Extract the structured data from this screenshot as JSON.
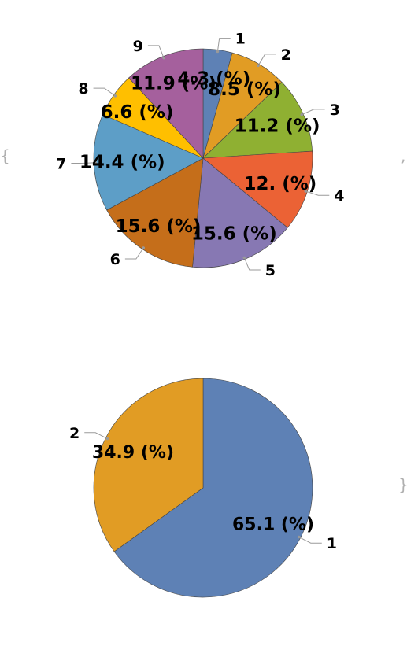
{
  "chart_data": [
    {
      "type": "pie",
      "title": "",
      "start": "top",
      "direction": "clockwise",
      "series": [
        {
          "label": "1",
          "value": 4.3,
          "value_label": "4.3 (%)",
          "color": "#5e81b5"
        },
        {
          "label": "2",
          "value": 8.5,
          "value_label": "8.5 (%)",
          "color": "#e19c24"
        },
        {
          "label": "3",
          "value": 11.2,
          "value_label": "11.2 (%)",
          "color": "#8fb032"
        },
        {
          "label": "4",
          "value": 12.0,
          "value_label": "12. (%)",
          "color": "#eb6235"
        },
        {
          "label": "5",
          "value": 15.6,
          "value_label": "15.6 (%)",
          "color": "#8778b3"
        },
        {
          "label": "6",
          "value": 15.6,
          "value_label": "15.6 (%)",
          "color": "#c56e1a"
        },
        {
          "label": "7",
          "value": 14.4,
          "value_label": "14.4 (%)",
          "color": "#5d9ec7"
        },
        {
          "label": "8",
          "value": 6.6,
          "value_label": "6.6 (%)",
          "color": "#ffbf00"
        },
        {
          "label": "9",
          "value": 11.9,
          "value_label": "11.9 (%)",
          "color": "#a5609d"
        }
      ]
    },
    {
      "type": "pie",
      "title": "",
      "start": "top",
      "direction": "clockwise",
      "series": [
        {
          "label": "1",
          "value": 65.1,
          "value_label": "65.1 (%)",
          "color": "#5e81b5"
        },
        {
          "label": "2",
          "value": 34.9,
          "value_label": "34.9 (%)",
          "color": "#e19c24"
        }
      ]
    }
  ],
  "decorations": {
    "open_brace": "{",
    "close_brace": "}",
    "separator": ","
  }
}
